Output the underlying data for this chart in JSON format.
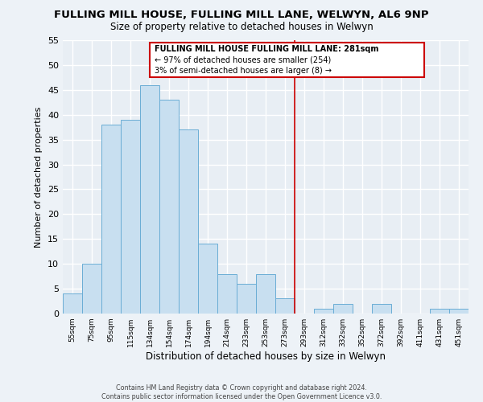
{
  "title": "FULLING MILL HOUSE, FULLING MILL LANE, WELWYN, AL6 9NP",
  "subtitle": "Size of property relative to detached houses in Welwyn",
  "xlabel": "Distribution of detached houses by size in Welwyn",
  "ylabel": "Number of detached properties",
  "bin_labels": [
    "55sqm",
    "75sqm",
    "95sqm",
    "115sqm",
    "134sqm",
    "154sqm",
    "174sqm",
    "194sqm",
    "214sqm",
    "233sqm",
    "253sqm",
    "273sqm",
    "293sqm",
    "312sqm",
    "332sqm",
    "352sqm",
    "372sqm",
    "392sqm",
    "411sqm",
    "431sqm",
    "451sqm"
  ],
  "bar_heights": [
    4,
    10,
    38,
    39,
    46,
    43,
    37,
    14,
    8,
    6,
    8,
    3,
    0,
    1,
    2,
    0,
    2,
    0,
    0,
    1,
    1
  ],
  "bar_color": "#c8dff0",
  "bar_edge_color": "#6aadd5",
  "ylim": [
    0,
    55
  ],
  "yticks": [
    0,
    5,
    10,
    15,
    20,
    25,
    30,
    35,
    40,
    45,
    50,
    55
  ],
  "vline_x": 12.0,
  "vline_color": "#cc0000",
  "annotation_title": "FULLING MILL HOUSE FULLING MILL LANE: 281sqm",
  "annotation_line1": "← 97% of detached houses are smaller (254)",
  "annotation_line2": "3% of semi-detached houses are larger (8) →",
  "footer1": "Contains HM Land Registry data © Crown copyright and database right 2024.",
  "footer2": "Contains public sector information licensed under the Open Government Licence v3.0.",
  "background_color": "#edf2f7",
  "plot_bg_color": "#e8eef4"
}
